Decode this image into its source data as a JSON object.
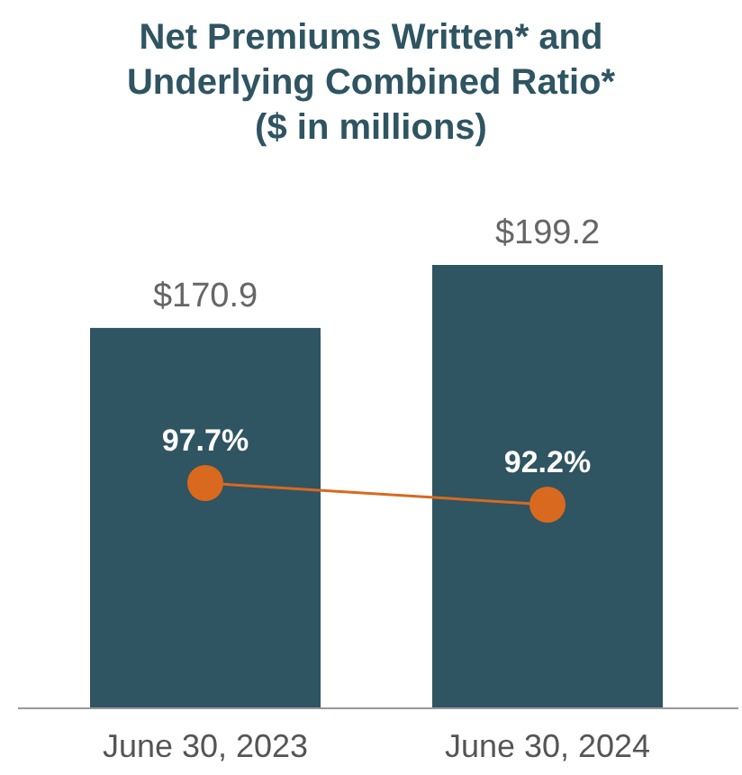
{
  "chart_data": {
    "type": "bar",
    "title": "Net Premiums Written* and Underlying Combined Ratio*",
    "subtitle": "($ in millions)",
    "categories": [
      "June 30, 2023",
      "June 30, 2024"
    ],
    "tick_labels": "x",
    "series": [
      {
        "color": "#2f5462",
        "values": [
          170.9,
          199.2
        ],
        "value_labels": [
          "$170.9",
          "$199.2"
        ]
      },
      {
        "type": "line",
        "axis": "y2",
        "color": "#d9691e",
        "marker": "circle",
        "values": [
          97.7,
          92.2
        ],
        "value_labels": [
          "97.7%",
          "92.2%"
        ]
      }
    ]
  }
}
